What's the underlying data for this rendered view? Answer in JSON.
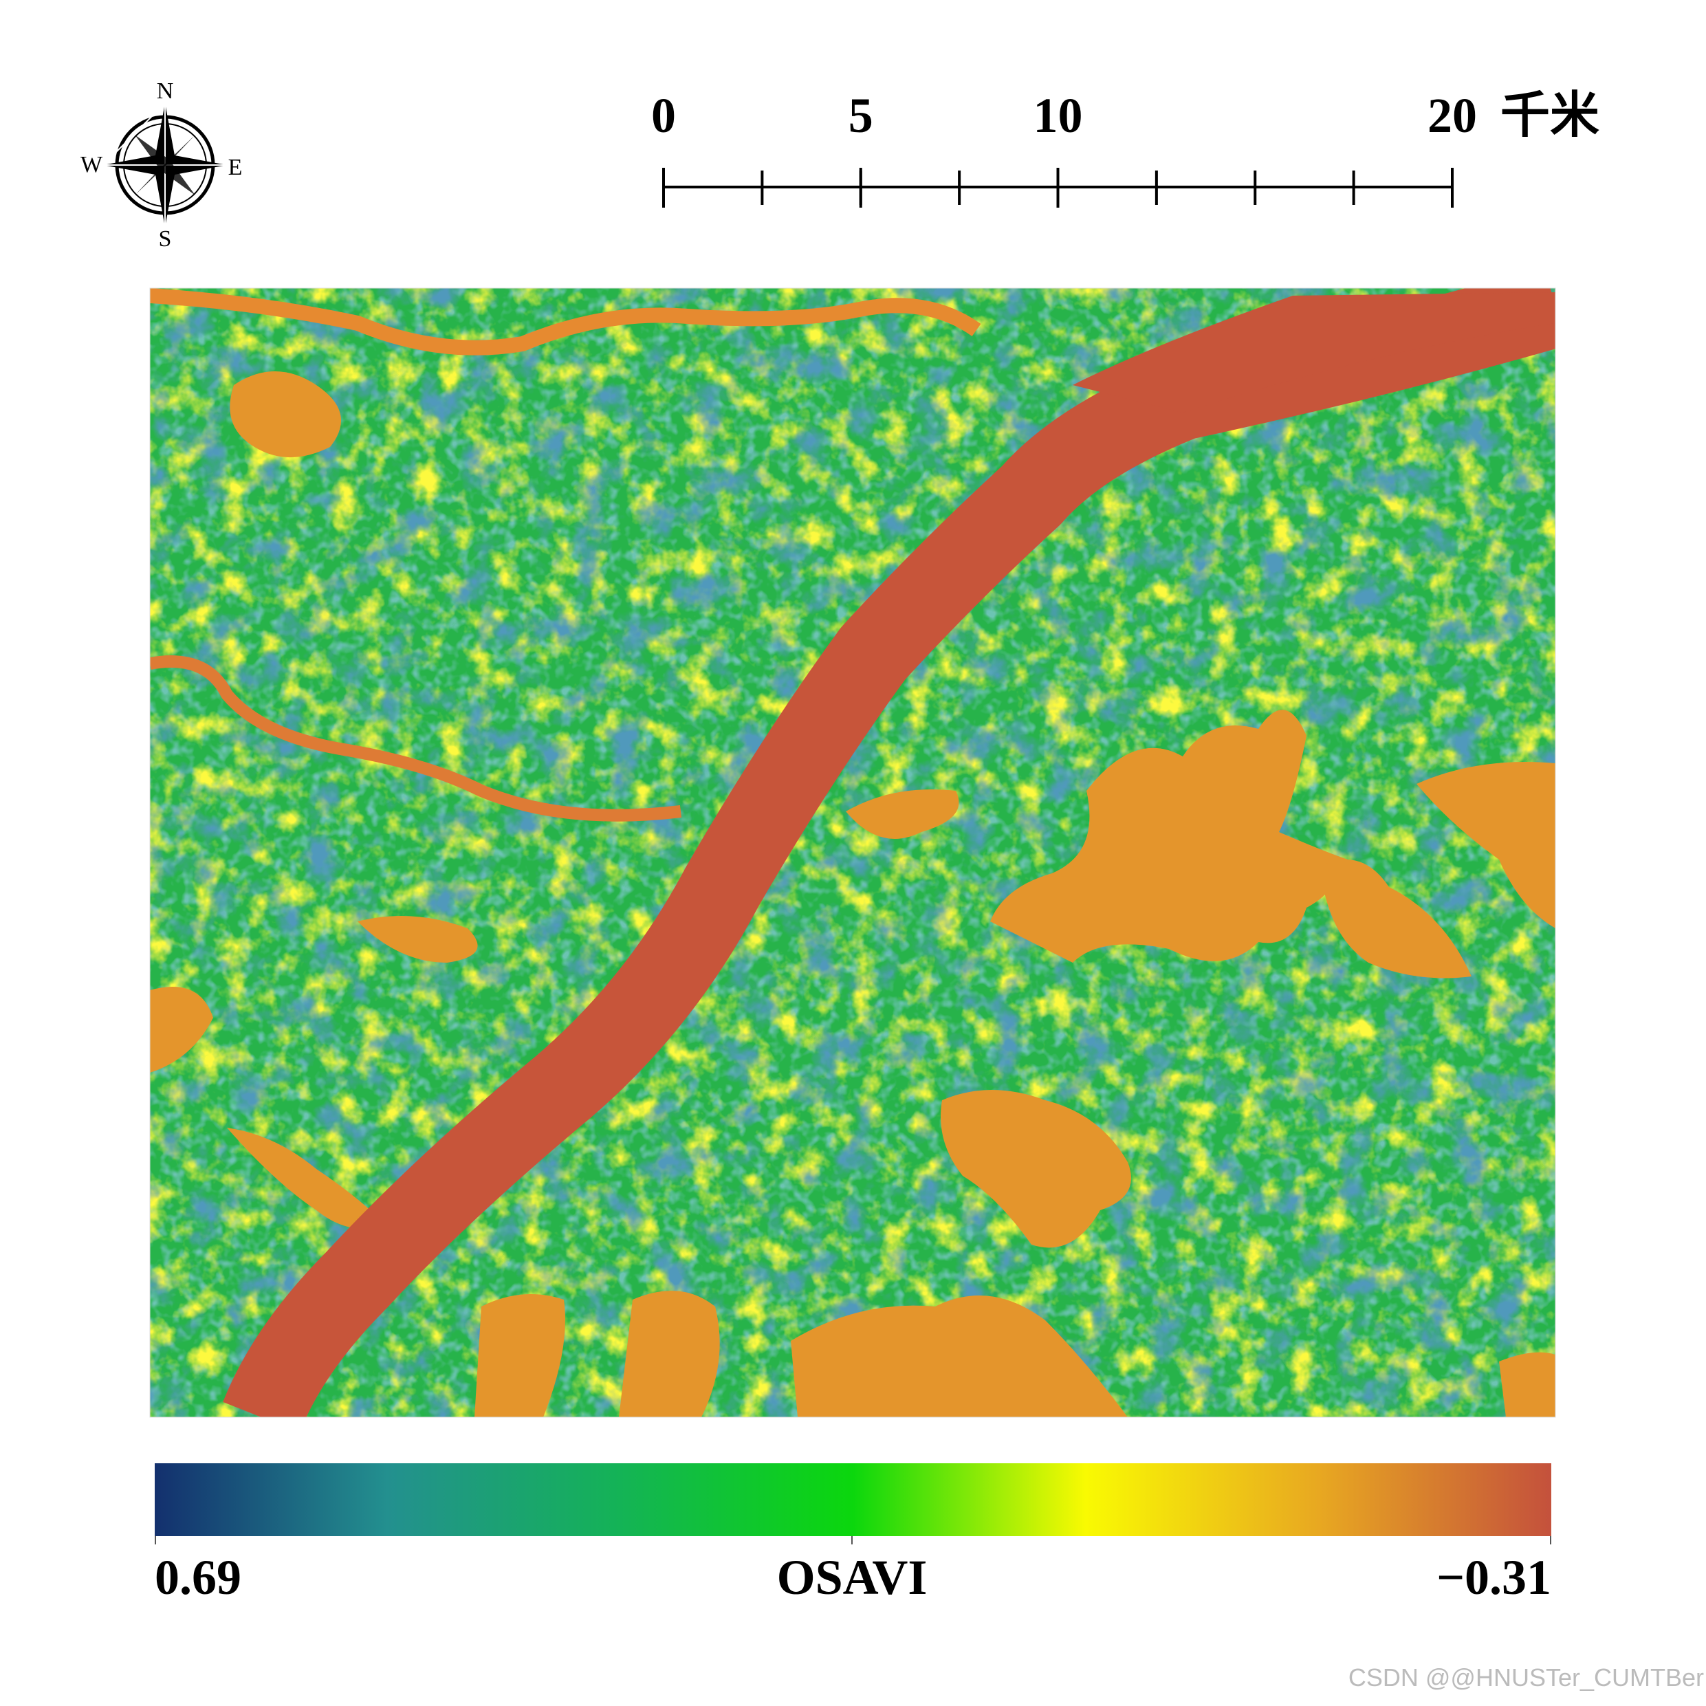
{
  "compass": {
    "north": "N",
    "south": "S",
    "west": "W",
    "east": "E"
  },
  "scale_bar": {
    "ticks": [
      0,
      5,
      10,
      20
    ],
    "unit": "千米"
  },
  "colorbar": {
    "title": "OSAVI",
    "max": 0.69,
    "min": {
      "value": -0.31,
      "label": "−0.31"
    },
    "colors": [
      "#13306e",
      "#23908f",
      "#14b356",
      "#0bd70d",
      "#f9fa02",
      "#e8a821",
      "#c4513c"
    ]
  },
  "watermark": "CSDN @@HNUSTer_CUMTBer"
}
